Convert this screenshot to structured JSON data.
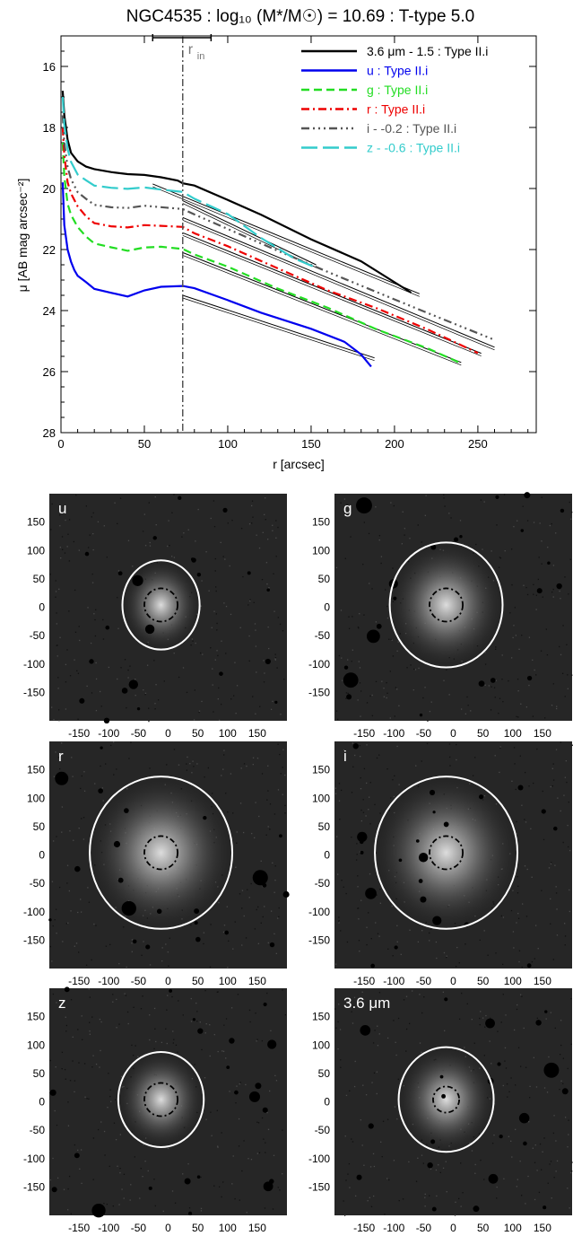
{
  "chart_data": [
    {
      "type": "line",
      "title": "NGC4535 : log₁₀ (M*/M☉) = 10.69 : T-type 5.0",
      "xlabel": "r [arcsec]",
      "ylabel": "μ [AB mag arcsec⁻²]",
      "xlim": [
        0,
        285
      ],
      "ylim": [
        28,
        15
      ],
      "x_ticks": [
        0,
        50,
        100,
        150,
        200,
        250
      ],
      "y_ticks": [
        16,
        18,
        20,
        22,
        24,
        26,
        28
      ],
      "legend_position": "top-right",
      "vline": {
        "x": 73,
        "label": "r",
        "label_sub": "in",
        "range": [
          55,
          90
        ]
      },
      "series": [
        {
          "name": "3.6 μm - 1.5 : Type II.i",
          "color": "#000000",
          "dash": "",
          "x": [
            1,
            2,
            4,
            6,
            10,
            15,
            20,
            30,
            40,
            50,
            60,
            70,
            73,
            80,
            100,
            120,
            150,
            180,
            210
          ],
          "y": [
            16.8,
            17.6,
            18.4,
            18.8,
            19.1,
            19.3,
            19.4,
            19.5,
            19.55,
            19.55,
            19.6,
            19.7,
            19.8,
            19.9,
            20.4,
            20.9,
            21.7,
            22.4,
            23.4
          ]
        },
        {
          "name": "u : Type II.i",
          "color": "#0000ee",
          "dash": "",
          "x": [
            1,
            2,
            4,
            6,
            8,
            10,
            15,
            20,
            30,
            40,
            50,
            60,
            73,
            80,
            100,
            120,
            150,
            170,
            180,
            186
          ],
          "y": [
            19.8,
            21.2,
            22.0,
            22.4,
            22.7,
            22.9,
            23.1,
            23.3,
            23.4,
            23.5,
            23.3,
            23.2,
            23.2,
            23.3,
            23.7,
            24.1,
            24.6,
            25.0,
            25.4,
            25.8
          ]
        },
        {
          "name": "g : Type II.i",
          "color": "#22dd22",
          "dash": "9 5",
          "x": [
            1,
            2,
            4,
            6,
            10,
            15,
            20,
            30,
            40,
            50,
            60,
            73,
            80,
            100,
            130,
            160,
            190,
            220,
            240
          ],
          "y": [
            18.5,
            19.6,
            20.5,
            20.9,
            21.3,
            21.6,
            21.8,
            21.9,
            22.0,
            21.9,
            21.9,
            22.0,
            22.2,
            22.6,
            23.3,
            23.9,
            24.6,
            25.2,
            25.7
          ]
        },
        {
          "name": "r : Type II.i",
          "color": "#ee0000",
          "dash": "9 4 2 4",
          "x": [
            1,
            2,
            4,
            6,
            10,
            15,
            20,
            30,
            40,
            50,
            60,
            73,
            80,
            100,
            130,
            160,
            190,
            220,
            250
          ],
          "y": [
            18.0,
            18.9,
            19.8,
            20.2,
            20.6,
            20.9,
            21.1,
            21.2,
            21.25,
            21.2,
            21.25,
            21.3,
            21.5,
            21.9,
            22.6,
            23.3,
            23.9,
            24.6,
            25.4
          ]
        },
        {
          "name": "i - -0.2 : Type II.i",
          "color": "#555555",
          "dash": "9 4 2 4 2 4 2 4",
          "x": [
            1,
            2,
            4,
            6,
            10,
            15,
            20,
            30,
            40,
            50,
            60,
            73,
            80,
            100,
            130,
            160,
            190,
            220,
            260
          ],
          "y": [
            17.6,
            18.5,
            19.3,
            19.7,
            20.1,
            20.3,
            20.5,
            20.6,
            20.65,
            20.6,
            20.65,
            20.7,
            20.85,
            21.3,
            22.0,
            22.7,
            23.4,
            24.1,
            25.0
          ]
        },
        {
          "name": "z - -0.6 : Type II.i",
          "color": "#33cccc",
          "dash": "18 6",
          "x": [
            1,
            2,
            4,
            6,
            10,
            15,
            20,
            30,
            40,
            50,
            60,
            73,
            80,
            100,
            120,
            140,
            152
          ],
          "y": [
            17.0,
            17.9,
            18.7,
            19.1,
            19.5,
            19.7,
            19.9,
            20.0,
            20.05,
            20.0,
            20.05,
            20.1,
            20.3,
            20.8,
            21.6,
            22.3,
            22.6
          ]
        }
      ],
      "fit_lines": [
        {
          "x": [
            55,
            215
          ],
          "y": [
            19.85,
            23.45
          ]
        },
        {
          "x": [
            73,
            153
          ],
          "y": [
            20.4,
            22.5
          ]
        },
        {
          "x": [
            73,
            260
          ],
          "y": [
            20.95,
            25.2
          ]
        },
        {
          "x": [
            73,
            252
          ],
          "y": [
            21.45,
            25.4
          ]
        },
        {
          "x": [
            73,
            240
          ],
          "y": [
            22.1,
            25.7
          ]
        },
        {
          "x": [
            73,
            188
          ],
          "y": [
            23.5,
            25.55
          ]
        }
      ]
    },
    {
      "type": "heatmap",
      "panels": [
        {
          "label": "u",
          "outer": [
            65,
            75
          ],
          "inner": [
            28,
            28
          ]
        },
        {
          "label": "g",
          "outer": [
            95,
            105
          ],
          "inner": [
            28,
            28
          ]
        },
        {
          "label": "r",
          "outer": [
            120,
            128
          ],
          "inner": [
            28,
            28
          ]
        },
        {
          "label": "i",
          "outer": [
            120,
            128
          ],
          "inner": [
            28,
            28
          ]
        },
        {
          "label": "z",
          "outer": [
            72,
            80
          ],
          "inner": [
            28,
            28
          ]
        },
        {
          "label": "3.6 μm",
          "outer": [
            80,
            88
          ],
          "inner": [
            22,
            22
          ]
        }
      ],
      "x_ticks": [
        "-150",
        "-100",
        "-50",
        "0",
        "50",
        "100",
        "150"
      ],
      "y_ticks": [
        "150",
        "100",
        "50",
        "0",
        "-50",
        "-100",
        "-150"
      ],
      "xlim": [
        -200,
        200
      ],
      "ylim": [
        -200,
        200
      ]
    }
  ]
}
